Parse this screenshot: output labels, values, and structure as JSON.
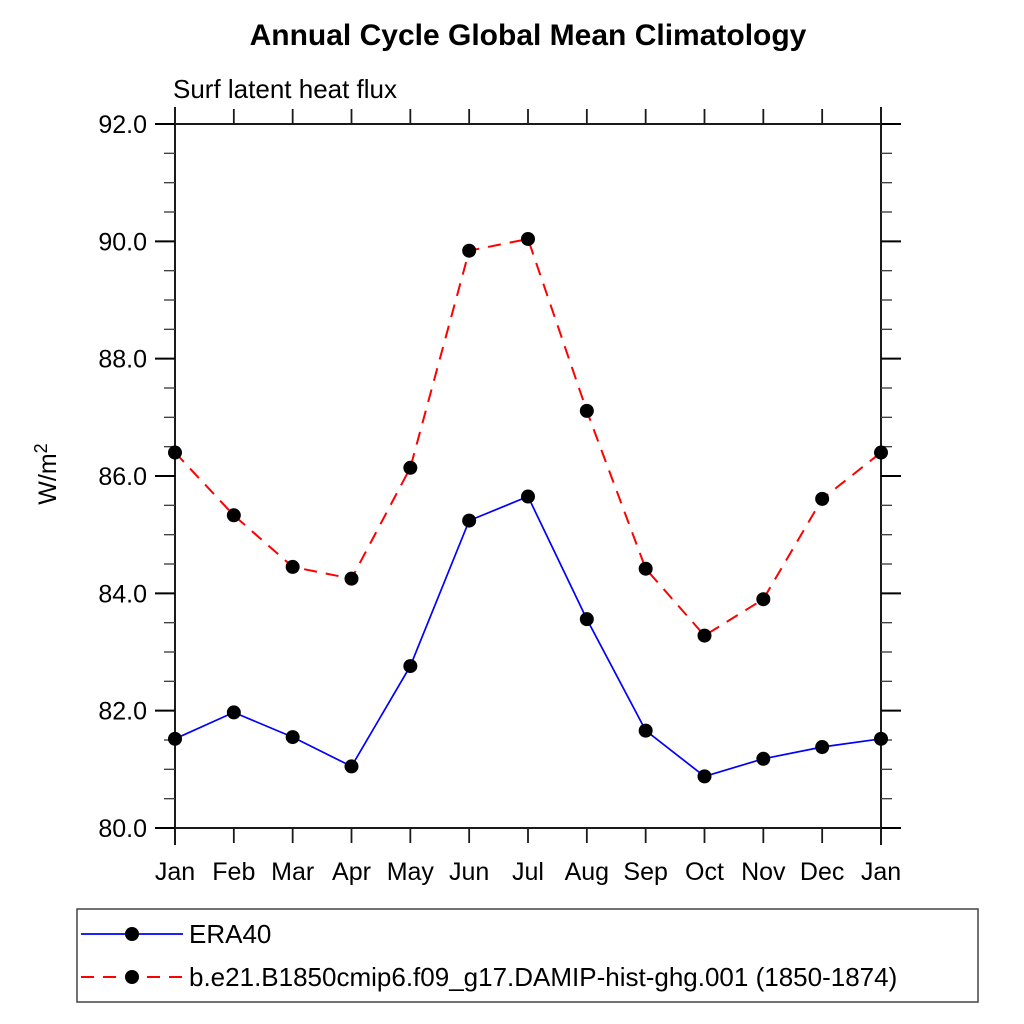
{
  "chart_data": {
    "type": "line",
    "title": "Annual Cycle Global Mean Climatology",
    "subtitle": "Surf latent heat flux",
    "ylabel": "W/m²",
    "ylabel_base": "W/m",
    "ylabel_sup": "2",
    "x_categories": [
      "Jan",
      "Feb",
      "Mar",
      "Apr",
      "May",
      "Jun",
      "Jul",
      "Aug",
      "Sep",
      "Oct",
      "Nov",
      "Dec",
      "Jan"
    ],
    "ylim": [
      80.0,
      92.0
    ],
    "y_major_ticks": [
      80.0,
      82.0,
      84.0,
      86.0,
      88.0,
      90.0,
      92.0
    ],
    "y_major_tick_labels": [
      "80.0",
      "82.0",
      "84.0",
      "86.0",
      "88.0",
      "90.0",
      "92.0"
    ],
    "y_minor_step": 0.5,
    "grid": false,
    "legend_position": "bottom",
    "marker": "filled-circle",
    "marker_color": "#000000",
    "series": [
      {
        "name": "ERA40",
        "color": "#0000ff",
        "line_style": "solid",
        "values": [
          81.52,
          81.97,
          81.55,
          81.05,
          82.76,
          85.24,
          85.65,
          83.56,
          81.66,
          80.88,
          81.18,
          81.38,
          81.52
        ]
      },
      {
        "name": "b.e21.B1850cmip6.f09_g17.DAMIP-hist-ghg.001 (1850-1874)",
        "color": "#ff0000",
        "line_style": "dashed",
        "values": [
          86.4,
          85.33,
          84.45,
          84.25,
          86.14,
          89.84,
          90.04,
          87.11,
          84.42,
          83.28,
          83.9,
          85.61,
          86.4
        ]
      }
    ]
  }
}
